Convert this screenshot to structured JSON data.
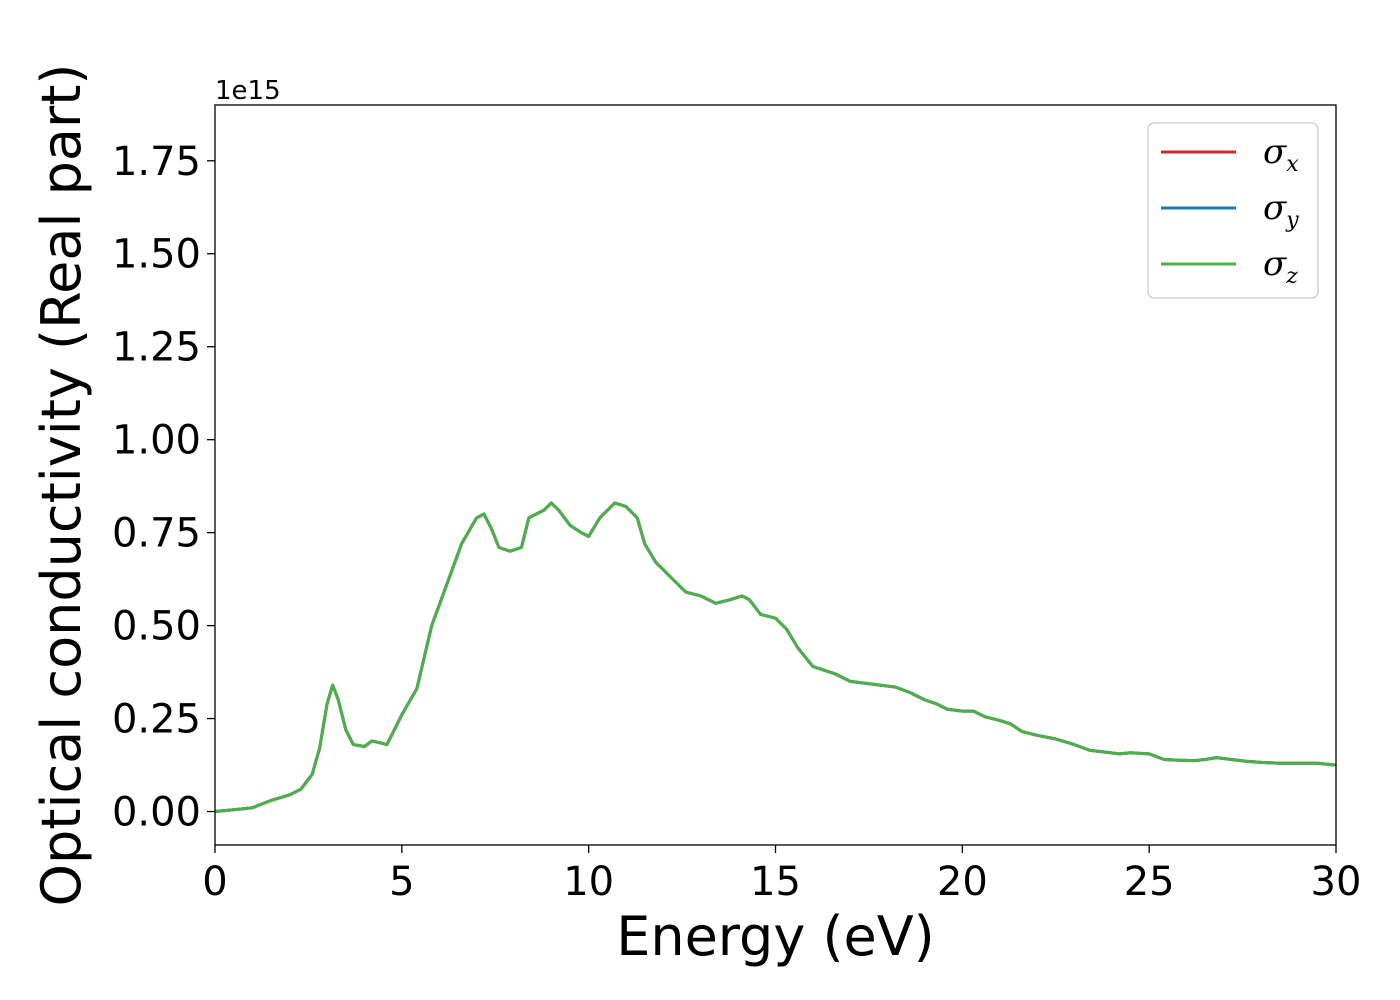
{
  "chart_data": {
    "type": "line",
    "xlabel": "Energy (eV)",
    "ylabel": "Optical conductivity (Real part)",
    "y_offset_label": "1e15",
    "xlim": [
      0,
      30
    ],
    "ylim": [
      -0.09,
      1.9
    ],
    "x_ticks": [
      0,
      5,
      10,
      15,
      20,
      25,
      30
    ],
    "x_tick_labels": [
      "0",
      "5",
      "10",
      "15",
      "20",
      "25",
      "30"
    ],
    "y_ticks": [
      0.0,
      0.25,
      0.5,
      0.75,
      1.0,
      1.25,
      1.5,
      1.75
    ],
    "y_tick_labels": [
      "0.00",
      "0.25",
      "0.50",
      "0.75",
      "1.00",
      "1.25",
      "1.50",
      "1.75"
    ],
    "grid": false,
    "legend_position": "top-right",
    "series": [
      {
        "name": "σ",
        "subscript": "x",
        "color": "#d62728",
        "x": [
          0,
          0.5,
          1.0,
          1.5,
          2.0,
          2.3,
          2.6,
          2.8,
          3.0,
          3.15,
          3.3,
          3.5,
          3.7,
          4.0,
          4.2,
          4.4,
          4.6,
          4.8,
          5.0,
          5.4,
          5.8,
          6.2,
          6.6,
          7.0,
          7.2,
          7.4,
          7.6,
          7.9,
          8.2,
          8.4,
          8.6,
          8.8,
          9.0,
          9.2,
          9.5,
          9.8,
          10.0,
          10.3,
          10.7,
          11.0,
          11.3,
          11.5,
          11.8,
          12.0,
          12.3,
          12.6,
          13.0,
          13.4,
          13.8,
          14.1,
          14.3,
          14.6,
          15.0,
          15.3,
          15.6,
          16.0,
          16.3,
          16.6,
          17.0,
          17.4,
          17.8,
          18.2,
          18.6,
          19.0,
          19.3,
          19.6,
          20.0,
          20.3,
          20.6,
          21.0,
          21.3,
          21.6,
          22.0,
          22.5,
          23.0,
          23.4,
          23.8,
          24.2,
          24.5,
          25.0,
          25.4,
          25.8,
          26.2,
          26.5,
          26.8,
          27.2,
          27.6,
          28.0,
          28.5,
          29.0,
          29.5,
          30.0
        ],
        "values": [
          0.0,
          0.005,
          0.01,
          0.03,
          0.045,
          0.06,
          0.1,
          0.17,
          0.29,
          0.34,
          0.3,
          0.22,
          0.18,
          0.175,
          0.19,
          0.185,
          0.18,
          0.22,
          0.26,
          0.33,
          0.5,
          0.61,
          0.72,
          0.79,
          0.8,
          0.76,
          0.71,
          0.7,
          0.71,
          0.79,
          0.8,
          0.81,
          0.83,
          0.81,
          0.77,
          0.75,
          0.74,
          0.79,
          0.83,
          0.82,
          0.79,
          0.72,
          0.67,
          0.65,
          0.62,
          0.59,
          0.58,
          0.56,
          0.57,
          0.58,
          0.57,
          0.53,
          0.52,
          0.49,
          0.44,
          0.39,
          0.38,
          0.37,
          0.35,
          0.345,
          0.34,
          0.335,
          0.32,
          0.3,
          0.29,
          0.275,
          0.27,
          0.27,
          0.255,
          0.245,
          0.235,
          0.215,
          0.205,
          0.195,
          0.18,
          0.165,
          0.16,
          0.155,
          0.158,
          0.155,
          0.14,
          0.138,
          0.137,
          0.14,
          0.145,
          0.14,
          0.135,
          0.132,
          0.13,
          0.13,
          0.13,
          0.125
        ]
      },
      {
        "name": "σ",
        "subscript": "y",
        "color": "#1f77b4",
        "x": [
          0,
          0.5,
          1.0,
          1.5,
          2.0,
          2.3,
          2.6,
          2.8,
          3.0,
          3.15,
          3.3,
          3.5,
          3.7,
          4.0,
          4.2,
          4.4,
          4.6,
          4.8,
          5.0,
          5.4,
          5.8,
          6.2,
          6.6,
          7.0,
          7.2,
          7.4,
          7.6,
          7.9,
          8.2,
          8.4,
          8.6,
          8.8,
          9.0,
          9.2,
          9.5,
          9.8,
          10.0,
          10.3,
          10.7,
          11.0,
          11.3,
          11.5,
          11.8,
          12.0,
          12.3,
          12.6,
          13.0,
          13.4,
          13.8,
          14.1,
          14.3,
          14.6,
          15.0,
          15.3,
          15.6,
          16.0,
          16.3,
          16.6,
          17.0,
          17.4,
          17.8,
          18.2,
          18.6,
          19.0,
          19.3,
          19.6,
          20.0,
          20.3,
          20.6,
          21.0,
          21.3,
          21.6,
          22.0,
          22.5,
          23.0,
          23.4,
          23.8,
          24.2,
          24.5,
          25.0,
          25.4,
          25.8,
          26.2,
          26.5,
          26.8,
          27.2,
          27.6,
          28.0,
          28.5,
          29.0,
          29.5,
          30.0
        ],
        "values": [
          0.0,
          0.005,
          0.01,
          0.03,
          0.045,
          0.06,
          0.1,
          0.17,
          0.29,
          0.34,
          0.3,
          0.22,
          0.18,
          0.175,
          0.19,
          0.185,
          0.18,
          0.22,
          0.26,
          0.33,
          0.5,
          0.61,
          0.72,
          0.79,
          0.8,
          0.76,
          0.71,
          0.7,
          0.71,
          0.79,
          0.8,
          0.81,
          0.83,
          0.81,
          0.77,
          0.75,
          0.74,
          0.79,
          0.83,
          0.82,
          0.79,
          0.72,
          0.67,
          0.65,
          0.62,
          0.59,
          0.58,
          0.56,
          0.57,
          0.58,
          0.57,
          0.53,
          0.52,
          0.49,
          0.44,
          0.39,
          0.38,
          0.37,
          0.35,
          0.345,
          0.34,
          0.335,
          0.32,
          0.3,
          0.29,
          0.275,
          0.27,
          0.27,
          0.255,
          0.245,
          0.235,
          0.215,
          0.205,
          0.195,
          0.18,
          0.165,
          0.16,
          0.155,
          0.158,
          0.155,
          0.14,
          0.138,
          0.137,
          0.14,
          0.145,
          0.14,
          0.135,
          0.132,
          0.13,
          0.13,
          0.13,
          0.125
        ]
      },
      {
        "name": "σ",
        "subscript": "z",
        "color": "#4daf4a",
        "x": [
          0,
          0.5,
          1.0,
          1.5,
          2.0,
          2.3,
          2.6,
          2.8,
          3.0,
          3.15,
          3.3,
          3.5,
          3.7,
          4.0,
          4.2,
          4.4,
          4.6,
          4.8,
          5.0,
          5.4,
          5.8,
          6.2,
          6.6,
          7.0,
          7.2,
          7.4,
          7.6,
          7.9,
          8.2,
          8.4,
          8.6,
          8.8,
          9.0,
          9.2,
          9.5,
          9.8,
          10.0,
          10.3,
          10.7,
          11.0,
          11.3,
          11.5,
          11.8,
          12.0,
          12.3,
          12.6,
          13.0,
          13.4,
          13.8,
          14.1,
          14.3,
          14.6,
          15.0,
          15.3,
          15.6,
          16.0,
          16.3,
          16.6,
          17.0,
          17.4,
          17.8,
          18.2,
          18.6,
          19.0,
          19.3,
          19.6,
          20.0,
          20.3,
          20.6,
          21.0,
          21.3,
          21.6,
          22.0,
          22.5,
          23.0,
          23.4,
          23.8,
          24.2,
          24.5,
          25.0,
          25.4,
          25.8,
          26.2,
          26.5,
          26.8,
          27.2,
          27.6,
          28.0,
          28.5,
          29.0,
          29.5,
          30.0
        ],
        "values": [
          0.0,
          0.005,
          0.01,
          0.03,
          0.045,
          0.06,
          0.1,
          0.17,
          0.29,
          0.34,
          0.3,
          0.22,
          0.18,
          0.175,
          0.19,
          0.185,
          0.18,
          0.22,
          0.26,
          0.33,
          0.5,
          0.61,
          0.72,
          0.79,
          0.8,
          0.76,
          0.71,
          0.7,
          0.71,
          0.79,
          0.8,
          0.81,
          0.83,
          0.81,
          0.77,
          0.75,
          0.74,
          0.79,
          0.83,
          0.82,
          0.79,
          0.72,
          0.67,
          0.65,
          0.62,
          0.59,
          0.58,
          0.56,
          0.57,
          0.58,
          0.57,
          0.53,
          0.52,
          0.49,
          0.44,
          0.39,
          0.38,
          0.37,
          0.35,
          0.345,
          0.34,
          0.335,
          0.32,
          0.3,
          0.29,
          0.275,
          0.27,
          0.27,
          0.255,
          0.245,
          0.235,
          0.215,
          0.205,
          0.195,
          0.18,
          0.165,
          0.16,
          0.155,
          0.158,
          0.155,
          0.14,
          0.138,
          0.137,
          0.14,
          0.145,
          0.14,
          0.135,
          0.132,
          0.13,
          0.13,
          0.13,
          0.125
        ]
      }
    ]
  }
}
